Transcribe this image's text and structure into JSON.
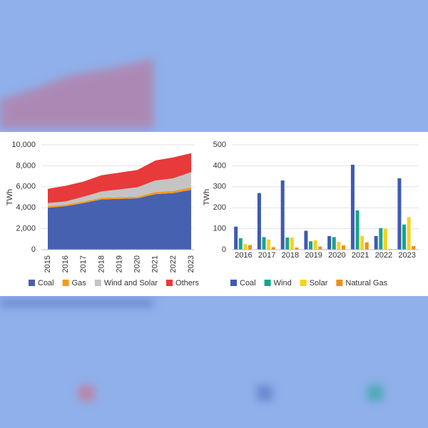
{
  "chart_data": [
    {
      "type": "area",
      "y_label": "TWh",
      "categories": [
        "2015",
        "2016",
        "2017",
        "2018",
        "2019",
        "2020",
        "2021",
        "2022",
        "2023"
      ],
      "series": [
        {
          "name": "Coal",
          "color": "#4561b0",
          "values": [
            4000,
            4150,
            4450,
            4800,
            4850,
            4900,
            5300,
            5400,
            5700
          ]
        },
        {
          "name": "Gas",
          "color": "#f39a1e",
          "values": [
            150,
            150,
            150,
            150,
            150,
            150,
            200,
            200,
            250
          ]
        },
        {
          "name": "Wind and Solar",
          "color": "#c4c4c4",
          "values": [
            300,
            300,
            450,
            600,
            750,
            900,
            1100,
            1200,
            1450
          ]
        },
        {
          "name": "Others",
          "color": "#e83a3a",
          "values": [
            1350,
            1500,
            1450,
            1550,
            1600,
            1650,
            1900,
            2000,
            1800
          ]
        }
      ],
      "ylim": [
        0,
        10000
      ],
      "yticks": [
        0,
        {
          "value": 2000,
          "label": "2,000"
        },
        {
          "value": 4000,
          "label": "4,000"
        },
        {
          "value": 6000,
          "label": "6,000"
        },
        {
          "value": 8000,
          "label": "8,000"
        },
        {
          "value": 10000,
          "label": "10,000"
        }
      ],
      "grid": true,
      "stacked": true,
      "legend": "bottom"
    },
    {
      "type": "bar",
      "y_label": "TWh",
      "categories": [
        "2016",
        "2017",
        "2018",
        "2019",
        "2020",
        "2021",
        "2022",
        "2023"
      ],
      "series": [
        {
          "name": "Coal",
          "color": "#3f5ab2",
          "values": [
            110,
            270,
            330,
            90,
            65,
            405,
            65,
            340
          ]
        },
        {
          "name": "Wind",
          "color": "#17a58a",
          "values": [
            55,
            60,
            58,
            40,
            60,
            187,
            103,
            120
          ]
        },
        {
          "name": "Solar",
          "color": "#f7d21e",
          "values": [
            27,
            48,
            58,
            45,
            37,
            65,
            100,
            155
          ]
        },
        {
          "name": "Natural Gas",
          "color": "#f08c1f",
          "values": [
            22,
            12,
            10,
            15,
            20,
            35,
            3,
            17
          ]
        }
      ],
      "ylim": [
        0,
        500
      ],
      "yticks": [
        0,
        100,
        200,
        300,
        400,
        500
      ],
      "grid": true,
      "legend": "bottom"
    }
  ]
}
